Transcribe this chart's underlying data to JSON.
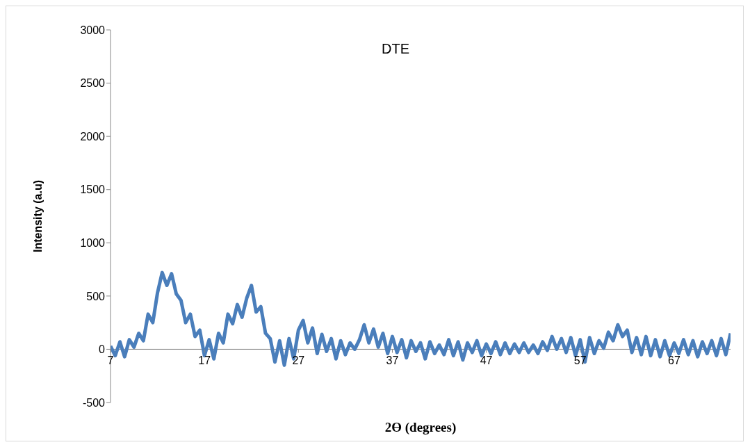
{
  "chart_data": {
    "type": "line",
    "title": "DTE",
    "xlabel": "2Ө (degrees)",
    "ylabel": "Intensity (a.u)",
    "x": [
      7,
      7.5,
      8,
      8.5,
      9,
      9.5,
      10,
      10.5,
      11,
      11.5,
      12,
      12.5,
      13,
      13.5,
      14,
      14.5,
      15,
      15.5,
      16,
      16.5,
      17,
      17.5,
      18,
      18.5,
      19,
      19.5,
      20,
      20.5,
      21,
      21.5,
      22,
      22.5,
      23,
      23.5,
      24,
      24.5,
      25,
      25.5,
      26,
      26.5,
      27,
      27.5,
      28,
      28.5,
      29,
      29.5,
      30,
      30.5,
      31,
      31.5,
      32,
      32.5,
      33,
      33.5,
      34,
      34.5,
      35,
      35.5,
      36,
      36.5,
      37,
      37.5,
      38,
      38.5,
      39,
      39.5,
      40,
      40.5,
      41,
      41.5,
      42,
      42.5,
      43,
      43.5,
      44,
      44.5,
      45,
      45.5,
      46,
      46.5,
      47,
      47.5,
      48,
      48.5,
      49,
      49.5,
      50,
      50.5,
      51,
      51.5,
      52,
      52.5,
      53,
      53.5,
      54,
      54.5,
      55,
      55.5,
      56,
      56.5,
      57,
      57.5,
      58,
      58.5,
      59,
      59.5,
      60,
      60.5,
      61,
      61.5,
      62,
      62.5,
      63,
      63.5,
      64,
      64.5,
      65,
      65.5,
      66,
      66.5,
      67,
      67.5,
      68,
      68.5,
      69,
      69.5,
      70,
      70.5,
      71,
      71.5,
      72,
      72.5,
      73
    ],
    "series": [
      {
        "color": "#4a7ebb",
        "values": [
          30,
          -60,
          70,
          -70,
          90,
          20,
          150,
          80,
          330,
          250,
          530,
          720,
          600,
          710,
          520,
          460,
          250,
          330,
          120,
          180,
          -60,
          90,
          -90,
          150,
          60,
          330,
          240,
          420,
          300,
          480,
          600,
          350,
          400,
          150,
          100,
          -120,
          80,
          -150,
          100,
          -90,
          180,
          270,
          60,
          200,
          -40,
          140,
          -20,
          100,
          -90,
          80,
          -50,
          60,
          0,
          90,
          230,
          60,
          190,
          20,
          150,
          -40,
          120,
          -30,
          90,
          -80,
          80,
          -20,
          60,
          -90,
          70,
          -40,
          40,
          -50,
          90,
          -60,
          70,
          -100,
          60,
          -30,
          80,
          -60,
          50,
          -40,
          70,
          -50,
          60,
          -40,
          50,
          -30,
          60,
          -30,
          40,
          -40,
          70,
          -10,
          120,
          0,
          100,
          -30,
          110,
          -60,
          90,
          -120,
          110,
          -40,
          80,
          10,
          160,
          80,
          230,
          120,
          180,
          -30,
          110,
          -50,
          120,
          -60,
          90,
          -70,
          80,
          -60,
          60,
          -40,
          90,
          -50,
          80,
          -70,
          70,
          -40,
          80,
          -60,
          100,
          -50,
          150
        ]
      }
    ],
    "xlim": [
      7,
      73
    ],
    "xticks": [
      7,
      17,
      27,
      37,
      47,
      57,
      67
    ],
    "ylim": [
      -500,
      3000
    ],
    "yticks": [
      -500,
      0,
      500,
      1000,
      1500,
      2000,
      2500,
      3000
    ],
    "marker": "none",
    "line_style": "solid"
  }
}
